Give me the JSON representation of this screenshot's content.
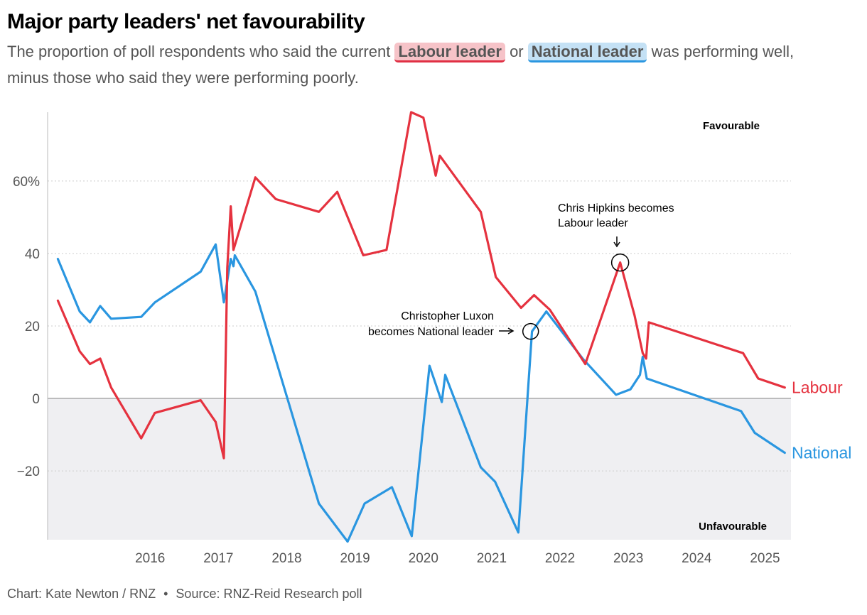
{
  "title": "Major party leaders' net favourability",
  "subtitle": {
    "before": "The proportion of poll respondents who said the current",
    "labour_chip": "Labour leader",
    "or": "or",
    "national_chip": "National leader",
    "after": "was performing well, minus those who said they were performing poorly."
  },
  "footer": {
    "credit": "Chart: Kate Newton / RNZ",
    "separator": "•",
    "source": "Source: RNZ-Reid Research poll"
  },
  "colors": {
    "labour": "#e5323f",
    "national": "#2a96e0",
    "negative_band": "#efeff2",
    "grid": "#cccccc"
  },
  "chart_data": {
    "type": "line",
    "ylim": [
      -39,
      79
    ],
    "xlim": [
      2015.0,
      2025.88
    ],
    "y_ticks": [
      {
        "value": 60,
        "label": "60%"
      },
      {
        "value": 40,
        "label": "40"
      },
      {
        "value": 20,
        "label": "20"
      },
      {
        "value": 0,
        "label": "0"
      },
      {
        "value": -20,
        "label": "−20"
      }
    ],
    "x_ticks": [
      {
        "value": 2016,
        "label": "2016"
      },
      {
        "value": 2017,
        "label": "2017"
      },
      {
        "value": 2018,
        "label": "2018"
      },
      {
        "value": 2019,
        "label": "2019"
      },
      {
        "value": 2020,
        "label": "2020"
      },
      {
        "value": 2021,
        "label": "2021"
      },
      {
        "value": 2022,
        "label": "2022"
      },
      {
        "value": 2023,
        "label": "2023"
      },
      {
        "value": 2024,
        "label": "2024"
      },
      {
        "value": 2025,
        "label": "2025"
      }
    ],
    "region_labels": {
      "top": "Favourable",
      "bottom": "Unfavourable"
    },
    "series": [
      {
        "name": "Labour",
        "color": "#e5323f",
        "points": [
          [
            2015.15,
            27
          ],
          [
            2015.47,
            13
          ],
          [
            2015.62,
            9.5
          ],
          [
            2015.77,
            11
          ],
          [
            2015.93,
            3
          ],
          [
            2016.37,
            -11
          ],
          [
            2016.57,
            -4
          ],
          [
            2017.24,
            -0.5
          ],
          [
            2017.46,
            -6.5
          ],
          [
            2017.58,
            -16.5
          ],
          [
            2017.63,
            36
          ],
          [
            2017.68,
            53
          ],
          [
            2017.72,
            41
          ],
          [
            2018.04,
            61
          ],
          [
            2018.34,
            55
          ],
          [
            2018.97,
            51.5
          ],
          [
            2019.24,
            57
          ],
          [
            2019.62,
            39.5
          ],
          [
            2019.96,
            41
          ],
          [
            2020.32,
            79
          ],
          [
            2020.5,
            77.5
          ],
          [
            2020.68,
            61.5
          ],
          [
            2020.74,
            67
          ],
          [
            2021.34,
            51.5
          ],
          [
            2021.56,
            33.5
          ],
          [
            2021.93,
            25
          ],
          [
            2022.12,
            28.5
          ],
          [
            2022.35,
            24.5
          ],
          [
            2022.87,
            9.5
          ],
          [
            2023.38,
            37.5
          ],
          [
            2023.59,
            23
          ],
          [
            2023.71,
            12.5
          ],
          [
            2023.76,
            11
          ],
          [
            2023.8,
            21
          ],
          [
            2025.18,
            12.5
          ],
          [
            2025.4,
            5.5
          ],
          [
            2025.79,
            3
          ]
        ]
      },
      {
        "name": "National",
        "color": "#2a96e0",
        "points": [
          [
            2015.15,
            38.5
          ],
          [
            2015.47,
            24
          ],
          [
            2015.62,
            21
          ],
          [
            2015.77,
            25.5
          ],
          [
            2015.93,
            22
          ],
          [
            2016.37,
            22.5
          ],
          [
            2016.57,
            26.5
          ],
          [
            2017.24,
            35
          ],
          [
            2017.46,
            42.5
          ],
          [
            2017.58,
            26.5
          ],
          [
            2017.68,
            38.5
          ],
          [
            2017.72,
            36.5
          ],
          [
            2017.74,
            39.5
          ],
          [
            2018.04,
            29.5
          ],
          [
            2018.97,
            -29
          ],
          [
            2019.39,
            -39.5
          ],
          [
            2019.64,
            -29
          ],
          [
            2020.04,
            -24.5
          ],
          [
            2020.33,
            -38
          ],
          [
            2020.59,
            9
          ],
          [
            2020.77,
            -1
          ],
          [
            2020.82,
            6.5
          ],
          [
            2021.34,
            -19
          ],
          [
            2021.55,
            -23
          ],
          [
            2021.89,
            -37
          ],
          [
            2022.09,
            18.5
          ],
          [
            2022.3,
            24
          ],
          [
            2022.83,
            11
          ],
          [
            2023.32,
            1
          ],
          [
            2023.53,
            2.5
          ],
          [
            2023.67,
            6.5
          ],
          [
            2023.71,
            11.5
          ],
          [
            2023.77,
            5.5
          ],
          [
            2025.15,
            -3.5
          ],
          [
            2025.35,
            -9.5
          ],
          [
            2025.79,
            -15
          ]
        ]
      }
    ],
    "annotations": [
      {
        "text_lines": [
          "Christopher Luxon",
          "becomes National leader"
        ],
        "x": 2022.07,
        "y": 18.5
      },
      {
        "text_lines": [
          "Chris Hipkins becomes",
          "Labour leader"
        ],
        "x": 2023.38,
        "y": 37.5
      }
    ],
    "end_labels": [
      {
        "series": "Labour",
        "text": "Labour"
      },
      {
        "series": "National",
        "text": "National"
      }
    ]
  }
}
